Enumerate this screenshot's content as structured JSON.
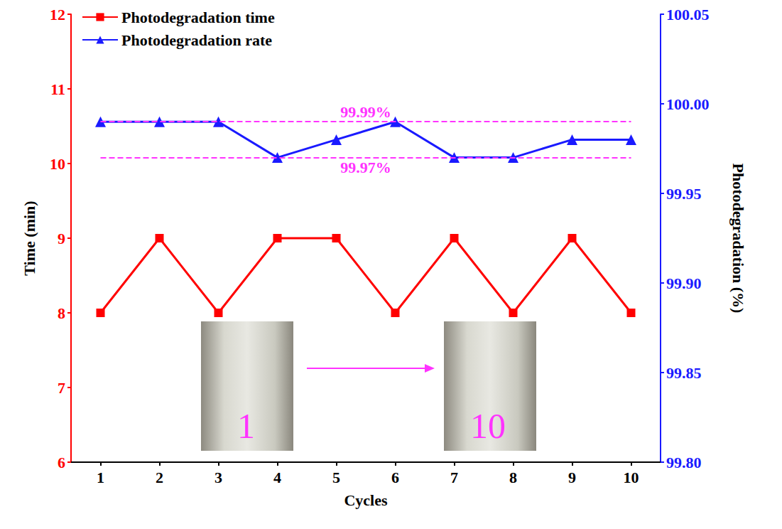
{
  "chart_data": {
    "type": "line",
    "categories": [
      "1",
      "2",
      "3",
      "4",
      "5",
      "6",
      "7",
      "8",
      "9",
      "10"
    ],
    "x_label": "Cycles",
    "y_label": "Time (min)",
    "y2_label": "Photodegradation (%)",
    "ylim": [
      6,
      12
    ],
    "yticks": [
      6,
      7,
      8,
      9,
      10,
      11,
      12
    ],
    "y2lim": [
      99.8,
      100.05
    ],
    "y2ticks": [
      {
        "value": 99.8,
        "label": "99.80"
      },
      99.85,
      {
        "value": 99.9,
        "label": "99.90"
      },
      99.95,
      {
        "value": 100,
        "label": "100.00"
      },
      100.05
    ],
    "series": [
      {
        "name": "Photodegradation time",
        "color": "#ff0000",
        "marker": "square",
        "values": [
          8,
          9,
          8,
          9,
          9,
          8,
          9,
          8,
          9,
          8
        ]
      },
      {
        "name": "Photodegradation rate",
        "color": "#1a1aff",
        "marker": "triangle",
        "axis": "y2",
        "values": [
          99.99,
          99.99,
          99.99,
          99.97,
          99.98,
          99.99,
          99.97,
          99.97,
          99.98,
          99.98
        ]
      }
    ],
    "annotations": [
      {
        "text": "99.99%",
        "value": 99.99,
        "axis": "y2",
        "color": "#ff33ff",
        "line_style": "dashed"
      },
      {
        "text": "99.97%",
        "value": 99.97,
        "axis": "y2",
        "color": "#ff33ff",
        "line_style": "dashed"
      }
    ],
    "insets": [
      "1",
      "10"
    ],
    "legend": "upper left",
    "grid": false
  }
}
